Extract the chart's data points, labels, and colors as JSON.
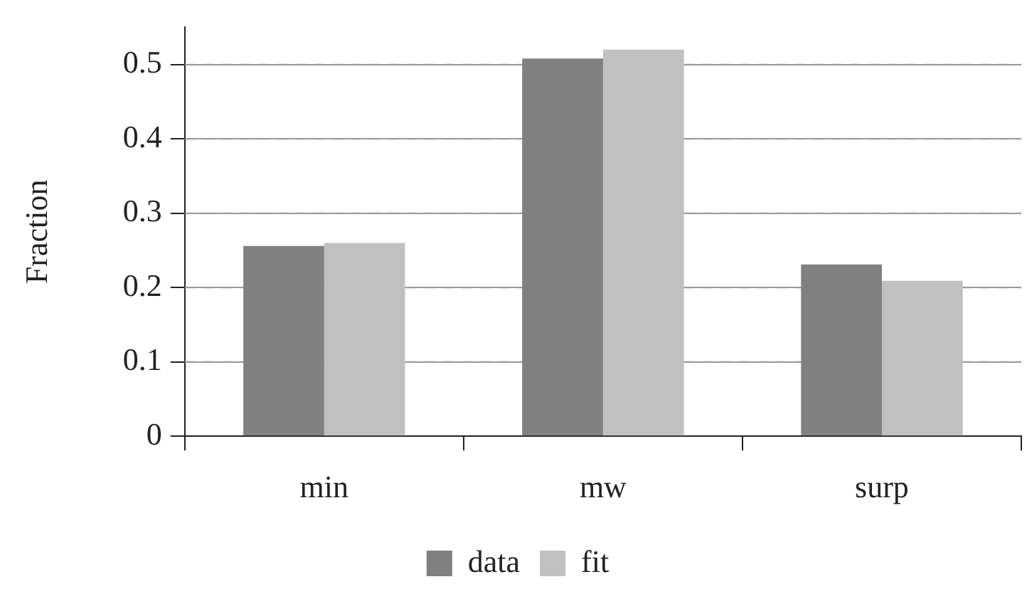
{
  "chart_data": {
    "type": "bar",
    "ylabel": "Fraction",
    "categories": [
      "min",
      "mw",
      "surp"
    ],
    "series": [
      {
        "name": "data",
        "color": "#808080",
        "values": [
          0.256,
          0.508,
          0.231
        ]
      },
      {
        "name": "fit",
        "color": "#c0c0c0",
        "values": [
          0.26,
          0.52,
          0.209
        ]
      }
    ],
    "ylim": [
      0,
      0.55
    ],
    "yticks": [
      0,
      0.1,
      0.2,
      0.3,
      0.4,
      0.5
    ],
    "grid": "y",
    "legend": "bottom"
  }
}
